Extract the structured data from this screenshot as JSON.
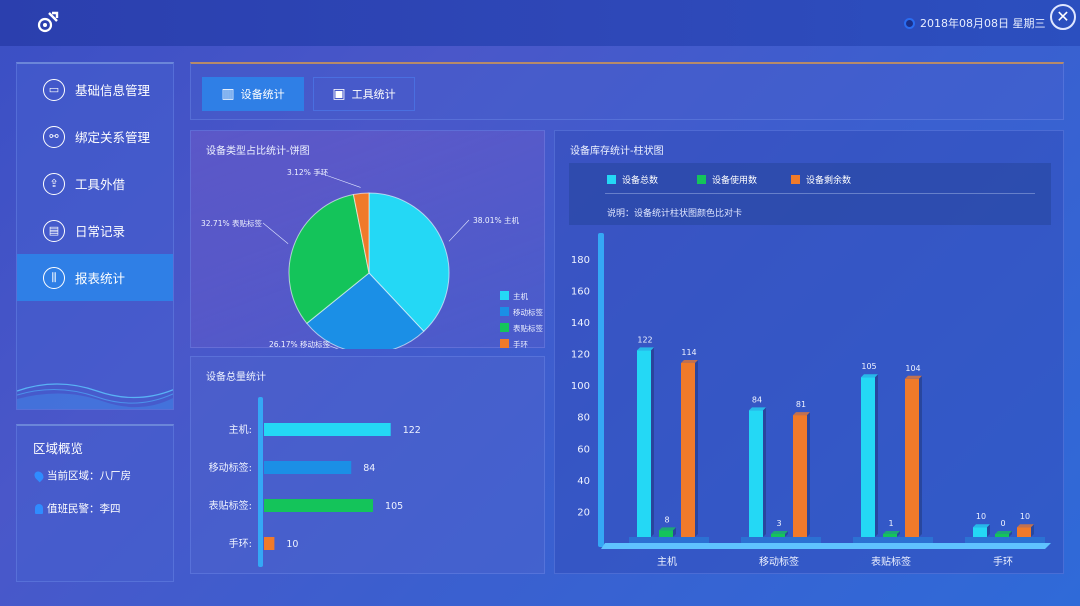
{
  "header": {
    "datetime": "2018年08月08日 星期三"
  },
  "sidebar": {
    "items": [
      {
        "label": "基础信息管理",
        "icon": "monitor-icon"
      },
      {
        "label": "绑定关系管理",
        "icon": "handshake-icon"
      },
      {
        "label": "工具外借",
        "icon": "upload-icon"
      },
      {
        "label": "日常记录",
        "icon": "document-icon"
      },
      {
        "label": "报表统计",
        "icon": "report-icon"
      }
    ],
    "active_index": 4
  },
  "region": {
    "title": "区域概览",
    "area": "当前区域：八厂房",
    "officer": "值班民警：李四"
  },
  "tabs": [
    {
      "label": "设备统计"
    },
    {
      "label": "工具统计"
    }
  ],
  "pie": {
    "title": "设备类型占比统计-饼图",
    "labels": [
      "38.01% 主机",
      "26.17% 移动标签",
      "32.71% 表贴标签",
      "3.12% 手环"
    ],
    "legend": [
      "主机",
      "移动标签",
      "表贴标签",
      "手环"
    ]
  },
  "totals": {
    "title": "设备总量统计"
  },
  "inventory": {
    "title": "设备库存统计-柱状图",
    "legend": [
      "设备总数",
      "设备使用数",
      "设备剩余数"
    ],
    "note": "说明：设备统计柱状图颜色比对卡"
  },
  "colors": {
    "cyan": "#24d8f5",
    "blue": "#1b8fe6",
    "green": "#14c45a",
    "orange": "#f07a2a"
  },
  "chart_data": [
    {
      "type": "pie",
      "title": "设备类型占比统计-饼图",
      "categories": [
        "主机",
        "移动标签",
        "表贴标签",
        "手环"
      ],
      "values": [
        38.01,
        26.17,
        32.71,
        3.12
      ],
      "legend": "right-bottom"
    },
    {
      "type": "bar",
      "title": "设备总量统计",
      "categories": [
        "主机:",
        "移动标签:",
        "表贴标签:",
        "手环:"
      ],
      "values": [
        122,
        84,
        105,
        10
      ],
      "orientation": "horizontal"
    },
    {
      "type": "bar",
      "title": "设备库存统计-柱状图",
      "categories": [
        "主机",
        "移动标签",
        "表贴标签",
        "手环"
      ],
      "series": [
        {
          "name": "设备总数",
          "values": [
            122,
            84,
            105,
            10
          ]
        },
        {
          "name": "设备使用数",
          "values": [
            8,
            3,
            1,
            0
          ]
        },
        {
          "name": "设备剩余数",
          "values": [
            114,
            81,
            104,
            10
          ]
        }
      ],
      "ylim": [
        0,
        190
      ],
      "yticks": [
        20,
        40,
        60,
        80,
        100,
        120,
        140,
        160,
        180
      ],
      "legend": "top"
    }
  ]
}
